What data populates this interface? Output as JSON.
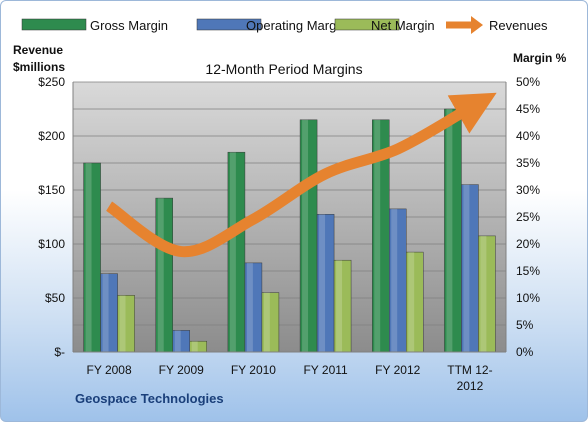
{
  "chart_data": {
    "type": "bar",
    "title": "12-Month Period Margins",
    "company": "Geospace Technologies",
    "y_left_label_line1": "Revenue",
    "y_left_label_line2": "$millions",
    "y_right_label": "Margin %",
    "categories": [
      [
        "FY 2008"
      ],
      [
        "FY 2009"
      ],
      [
        "FY 2010"
      ],
      [
        "FY 2011"
      ],
      [
        "FY 2012"
      ],
      [
        "TTM 12-",
        "2012"
      ]
    ],
    "y_left_ticks": [
      "$-",
      "$50",
      "$100",
      "$150",
      "$200",
      "$250"
    ],
    "y_right_ticks": [
      "0%",
      "5%",
      "10%",
      "15%",
      "20%",
      "25%",
      "30%",
      "35%",
      "40%",
      "45%",
      "50%"
    ],
    "ylim_left": [
      0,
      250
    ],
    "ylim_right": [
      0,
      50
    ],
    "series": [
      {
        "name": "Gross Margin",
        "axis": "right",
        "values": [
          35,
          28.5,
          37,
          43,
          43,
          45
        ],
        "color": "#2e8b4e"
      },
      {
        "name": "Operating Margin",
        "axis": "right",
        "values": [
          14.5,
          4,
          16.5,
          25.5,
          26.5,
          31
        ],
        "color": "#4f77b8"
      },
      {
        "name": "Net Margin",
        "axis": "right",
        "values": [
          10.5,
          2,
          11,
          17,
          18.5,
          21.5
        ],
        "color": "#9bbb59"
      }
    ],
    "line_series": {
      "name": "Revenues",
      "axis": "left",
      "values": [
        135,
        93,
        123,
        165,
        188,
        226
      ],
      "color": "#e6832f"
    },
    "grid": true,
    "legend": "top"
  }
}
